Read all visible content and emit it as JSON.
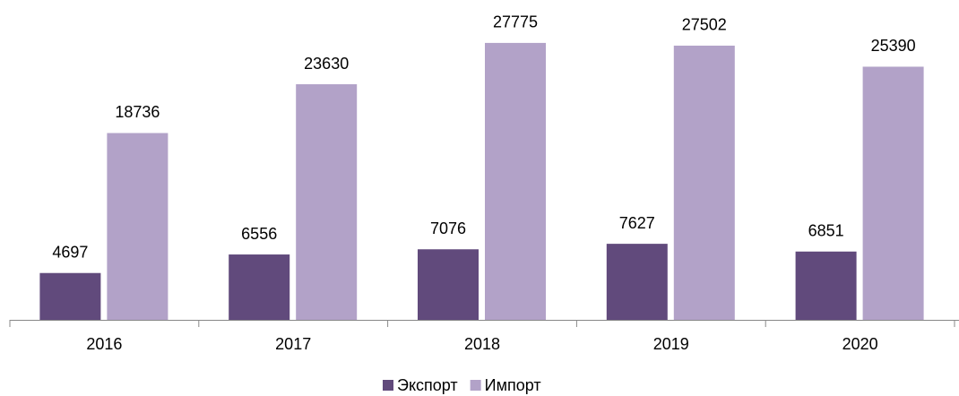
{
  "chart_data": {
    "type": "bar",
    "categories": [
      "2016",
      "2017",
      "2018",
      "2019",
      "2020"
    ],
    "series": [
      {
        "name": "Экспорт",
        "color": "#614a7c",
        "values": [
          4697,
          6556,
          7076,
          7627,
          6851
        ]
      },
      {
        "name": "Импорт",
        "color": "#b2a2c8",
        "values": [
          18736,
          23630,
          27775,
          27502,
          25390
        ]
      }
    ],
    "ylim": [
      0,
      28000
    ],
    "legend": "bottom"
  }
}
